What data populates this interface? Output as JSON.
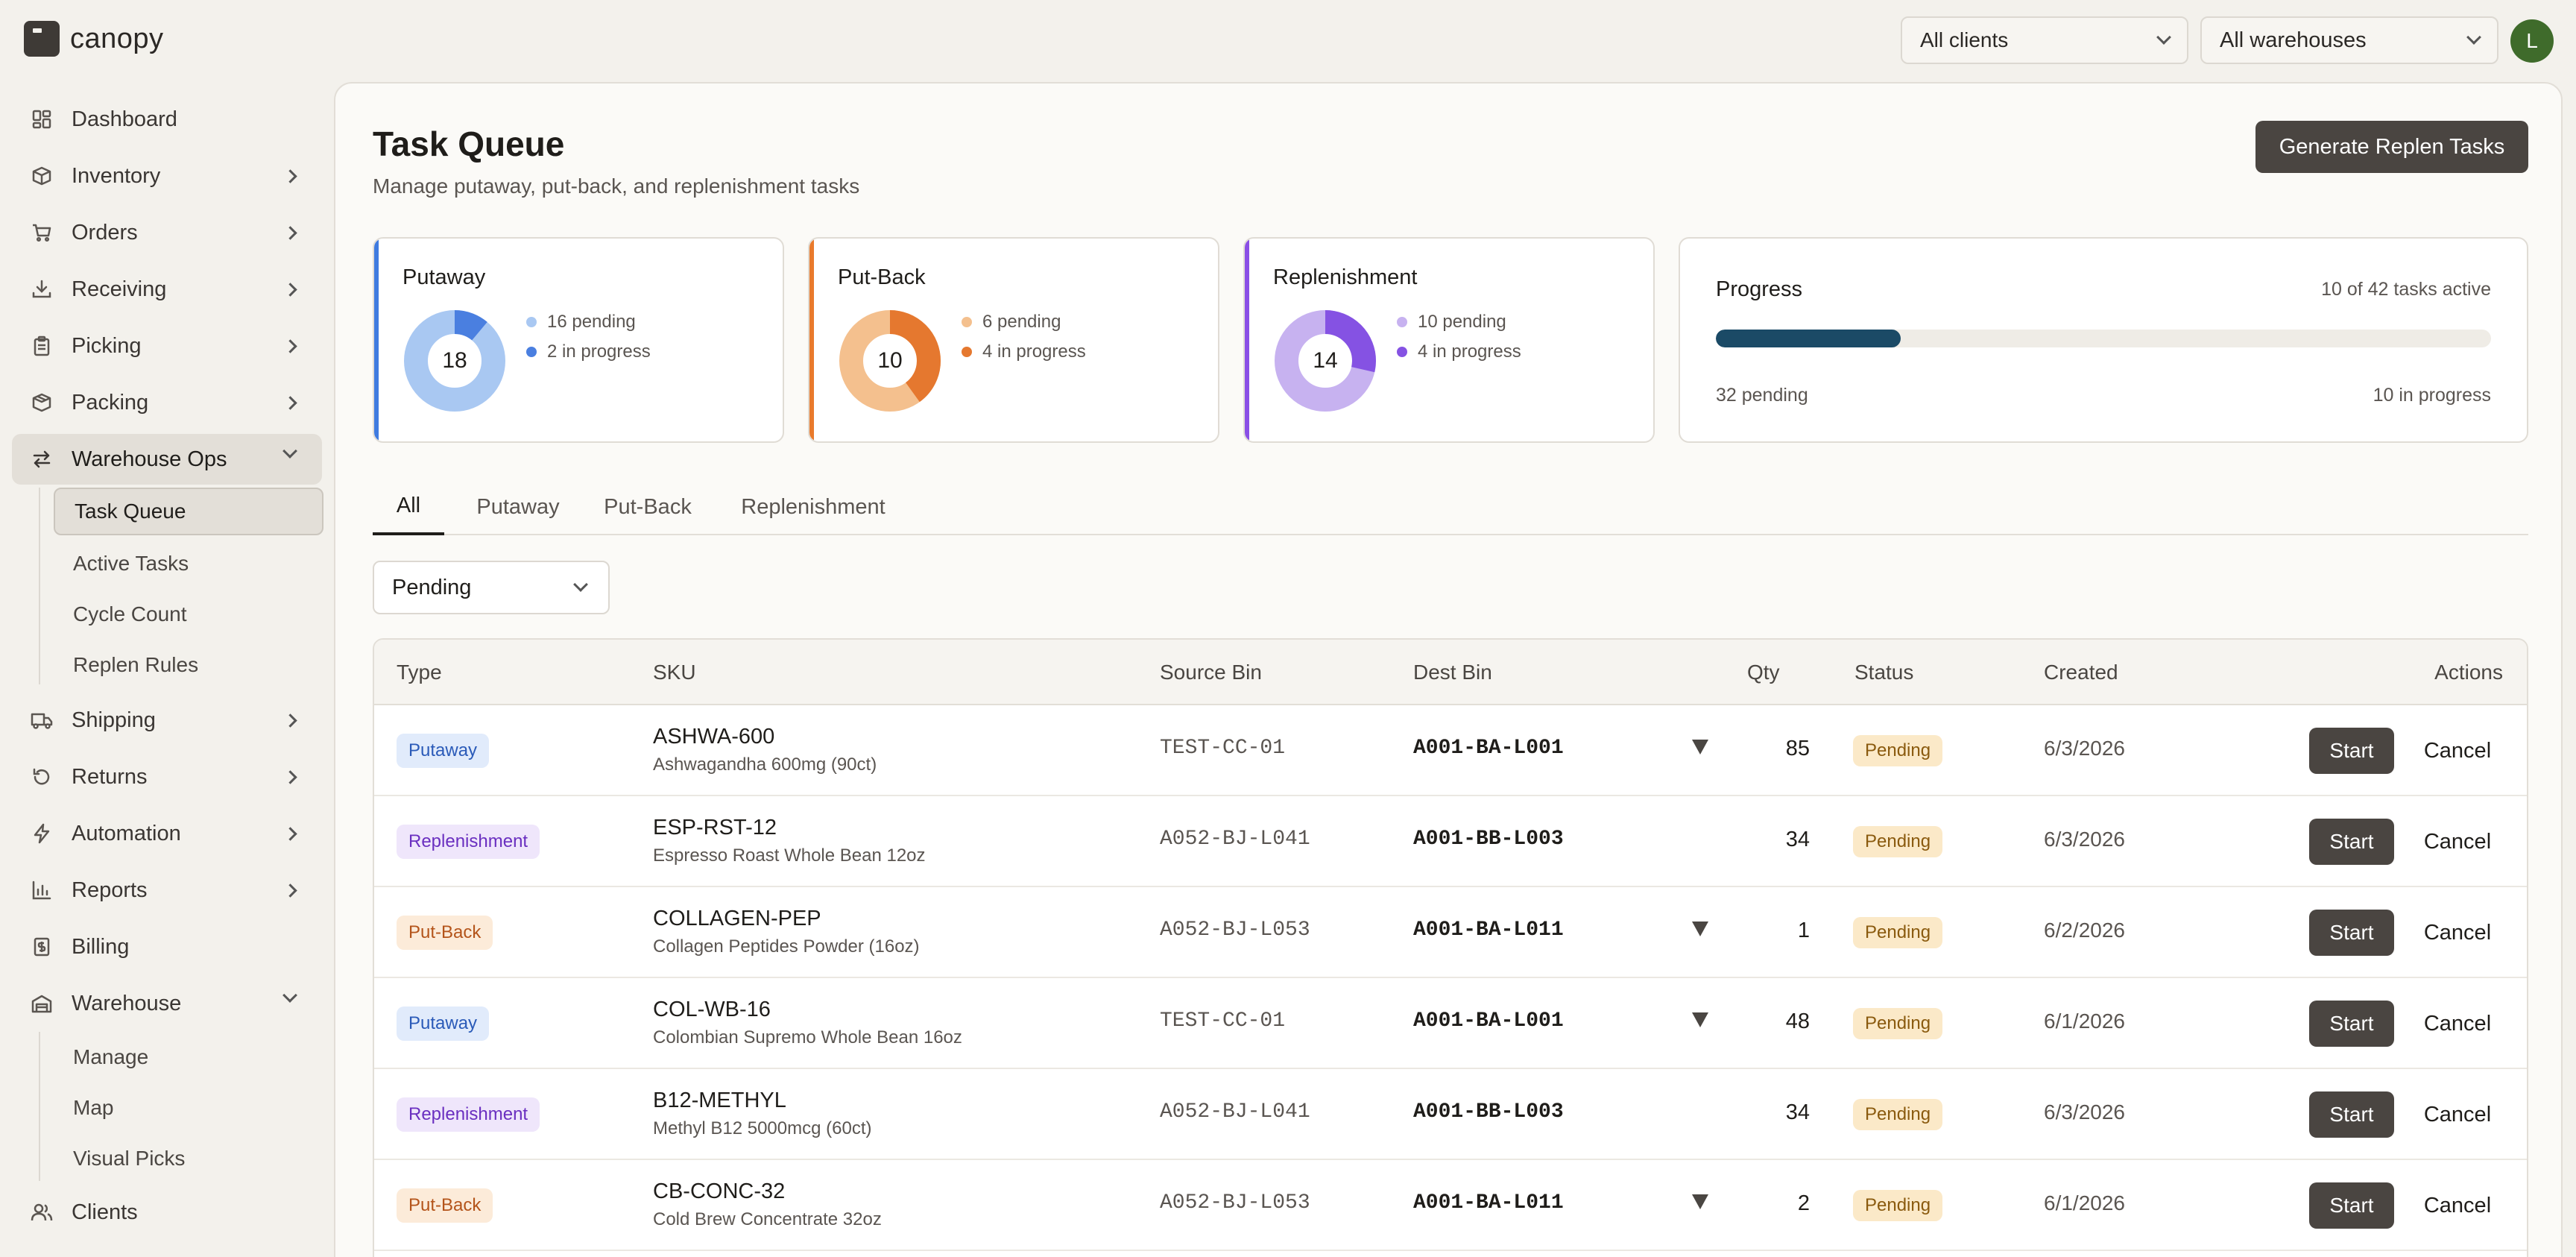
{
  "app": {
    "name": "canopy",
    "avatar_initial": "L"
  },
  "top_filters": {
    "client": "All clients",
    "warehouse": "All warehouses"
  },
  "sidebar": {
    "items": [
      {
        "label": "Dashboard",
        "icon": "dashboard-icon",
        "has_chevron": false
      },
      {
        "label": "Inventory",
        "icon": "box-icon",
        "has_chevron": true
      },
      {
        "label": "Orders",
        "icon": "cart-icon",
        "has_chevron": true
      },
      {
        "label": "Receiving",
        "icon": "download-icon",
        "has_chevron": true
      },
      {
        "label": "Picking",
        "icon": "clipboard-icon",
        "has_chevron": true
      },
      {
        "label": "Packing",
        "icon": "package-icon",
        "has_chevron": true
      },
      {
        "label": "Warehouse Ops",
        "icon": "transfer-icon",
        "expanded": true
      },
      {
        "label": "Shipping",
        "icon": "truck-icon",
        "has_chevron": true
      },
      {
        "label": "Returns",
        "icon": "undo-icon",
        "has_chevron": true
      },
      {
        "label": "Automation",
        "icon": "bolt-icon",
        "has_chevron": true
      },
      {
        "label": "Reports",
        "icon": "bar-chart-icon",
        "has_chevron": true
      },
      {
        "label": "Billing",
        "icon": "receipt-icon",
        "has_chevron": false
      },
      {
        "label": "Warehouse",
        "icon": "building-icon",
        "expanded": true
      },
      {
        "label": "Clients",
        "icon": "users-icon",
        "has_chevron": false
      }
    ],
    "warehouse_ops_sub": [
      "Task Queue",
      "Active Tasks",
      "Cycle Count",
      "Replen Rules"
    ],
    "warehouse_sub": [
      "Manage",
      "Map",
      "Visual Picks"
    ]
  },
  "page": {
    "title": "Task Queue",
    "subtitle": "Manage putaway, put-back, and replenishment tasks",
    "generate_button": "Generate Replen Tasks"
  },
  "summary_cards": [
    {
      "title": "Putaway",
      "total": "18",
      "pending": 16,
      "in_progress": 2,
      "pending_label": "16 pending",
      "progress_label": "2 in progress",
      "accent": "#3f7be0",
      "light": "#a9c8f2",
      "dark": "#4a7fe0"
    },
    {
      "title": "Put-Back",
      "total": "10",
      "pending": 6,
      "in_progress": 4,
      "pending_label": "6 pending",
      "progress_label": "4 in progress",
      "accent": "#e97a2c",
      "light": "#f4c08e",
      "dark": "#e5782f"
    },
    {
      "title": "Replenishment",
      "total": "14",
      "pending": 10,
      "in_progress": 4,
      "pending_label": "10 pending",
      "progress_label": "4 in progress",
      "accent": "#8a4fe6",
      "light": "#c7b2f0",
      "dark": "#8552e3"
    }
  ],
  "progress": {
    "title": "Progress",
    "active_text": "10 of 42 tasks active",
    "fraction": 0.238,
    "pending_text": "32 pending",
    "in_progress_text": "10 in progress",
    "bar_color": "#1b4a66"
  },
  "tabs": [
    "All",
    "Putaway",
    "Put-Back",
    "Replenishment"
  ],
  "filter": {
    "status": "Pending"
  },
  "table": {
    "headers": {
      "type": "Type",
      "sku": "SKU",
      "source": "Source Bin",
      "dest": "Dest Bin",
      "qty": "Qty",
      "status": "Status",
      "created": "Created",
      "actions": "Actions"
    },
    "action_start": "Start",
    "action_cancel": "Cancel",
    "rows": [
      {
        "type": "Putaway",
        "sku": "ASHWA-600",
        "desc": "Ashwagandha 600mg (90ct)",
        "source": "TEST-CC-01",
        "dest": "A001-BA-L001",
        "has_dropdown": true,
        "qty": "85",
        "status": "Pending",
        "created": "6/3/2026"
      },
      {
        "type": "Replenishment",
        "sku": "ESP-RST-12",
        "desc": "Espresso Roast Whole Bean 12oz",
        "source": "A052-BJ-L041",
        "dest": "A001-BB-L003",
        "has_dropdown": false,
        "qty": "34",
        "status": "Pending",
        "created": "6/3/2026"
      },
      {
        "type": "Put-Back",
        "sku": "COLLAGEN-PEP",
        "desc": "Collagen Peptides Powder (16oz)",
        "source": "A052-BJ-L053",
        "dest": "A001-BA-L011",
        "has_dropdown": true,
        "qty": "1",
        "status": "Pending",
        "created": "6/2/2026"
      },
      {
        "type": "Putaway",
        "sku": "COL-WB-16",
        "desc": "Colombian Supremo Whole Bean 16oz",
        "source": "TEST-CC-01",
        "dest": "A001-BA-L001",
        "has_dropdown": true,
        "qty": "48",
        "status": "Pending",
        "created": "6/1/2026"
      },
      {
        "type": "Replenishment",
        "sku": "B12-METHYL",
        "desc": "Methyl B12 5000mcg (60ct)",
        "source": "A052-BJ-L041",
        "dest": "A001-BB-L003",
        "has_dropdown": false,
        "qty": "34",
        "status": "Pending",
        "created": "6/3/2026"
      },
      {
        "type": "Put-Back",
        "sku": "CB-CONC-32",
        "desc": "Cold Brew Concentrate 32oz",
        "source": "A052-BJ-L053",
        "dest": "A001-BA-L011",
        "has_dropdown": true,
        "qty": "2",
        "status": "Pending",
        "created": "6/1/2026"
      }
    ]
  }
}
